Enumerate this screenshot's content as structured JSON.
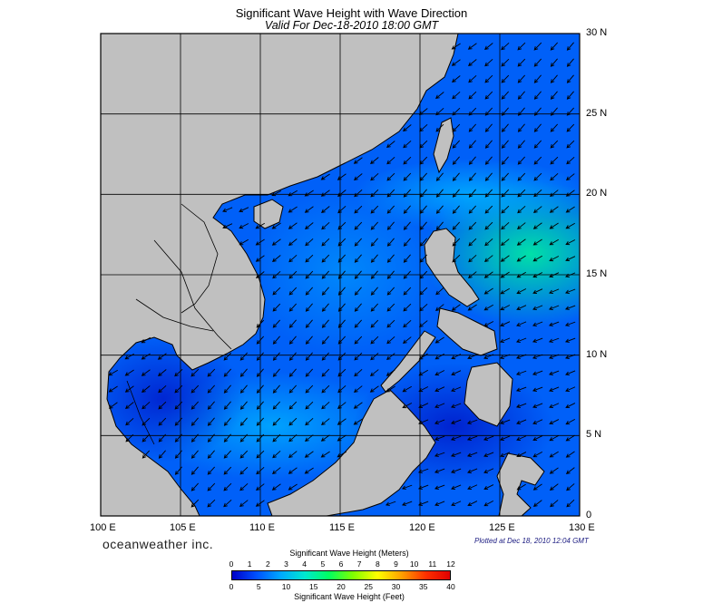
{
  "title": "Significant Wave Height with Wave Direction",
  "subtitle": "Valid For Dec-18-2010 18:00 GMT",
  "brand": "oceanweather inc.",
  "plotted": "Plotted at Dec 18, 2010 12:04 GMT",
  "lon_labels": [
    "100 E",
    "105 E",
    "110 E",
    "115 E",
    "120 E",
    "125 E",
    "130 E"
  ],
  "lat_labels": [
    "30 N",
    "25 N",
    "20 N",
    "15 N",
    "10 N",
    "5 N",
    "0"
  ],
  "colorbar": {
    "title_meters": "Significant Wave Height (Meters)",
    "title_feet": "Significant Wave Height (Feet)",
    "meter_ticks": [
      "0",
      "1",
      "2",
      "3",
      "4",
      "5",
      "6",
      "7",
      "8",
      "9",
      "10",
      "11",
      "12"
    ],
    "feet_ticks": [
      "0",
      "5",
      "10",
      "15",
      "20",
      "25",
      "30",
      "35",
      "40"
    ],
    "stops": [
      "#0000c8",
      "#0050ff",
      "#00a8ff",
      "#00e8d0",
      "#00ff60",
      "#80ff00",
      "#ffff00",
      "#ffa000",
      "#ff3000",
      "#e00000"
    ]
  },
  "map": {
    "extent": {
      "lon": [
        100,
        130
      ],
      "lat": [
        0,
        30
      ]
    },
    "land_color": "#c0c0c0",
    "sea_color": "#0064ff",
    "gridlines": true,
    "arrow_direction": "toward southwest"
  }
}
